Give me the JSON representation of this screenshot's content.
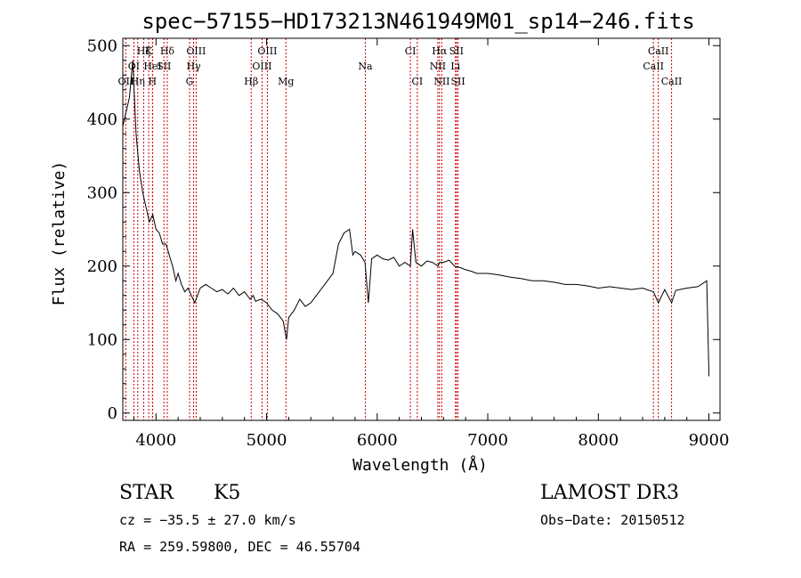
{
  "chart_data": {
    "type": "line",
    "title": "spec−57155−HD173213N461949M01_sp14−246.fits",
    "xlabel": "Wavelength (Å)",
    "ylabel": "Flux (relative)",
    "xlim": [
      3700,
      9100
    ],
    "ylim": [
      -10,
      510
    ],
    "x_ticks": [
      4000,
      5000,
      6000,
      7000,
      8000,
      9000
    ],
    "y_ticks": [
      0,
      100,
      200,
      300,
      400,
      500
    ],
    "grid": false,
    "line_color": "#000000",
    "marker_color": "#cc0000",
    "series": [
      {
        "x": [
          3700,
          3760,
          3790,
          3820,
          3850,
          3880,
          3910,
          3940,
          3970,
          4000,
          4030,
          4060,
          4090,
          4120,
          4150,
          4180,
          4200,
          4230,
          4260,
          4290,
          4320,
          4350,
          4400,
          4450,
          4500,
          4550,
          4600,
          4650,
          4700,
          4750,
          4800,
          4850,
          4880,
          4900,
          4950,
          5000,
          5050,
          5100,
          5150,
          5180,
          5200,
          5250,
          5300,
          5350,
          5400,
          5450,
          5500,
          5550,
          5600,
          5650,
          5700,
          5750,
          5780,
          5800,
          5850,
          5890,
          5920,
          5950,
          6000,
          6050,
          6100,
          6150,
          6200,
          6250,
          6300,
          6320,
          6350,
          6400,
          6450,
          6500,
          6550,
          6563,
          6600,
          6650,
          6700,
          6750,
          6800,
          6850,
          6900,
          7000,
          7100,
          7200,
          7300,
          7400,
          7500,
          7600,
          7700,
          7800,
          7900,
          8000,
          8100,
          8200,
          8300,
          8400,
          8498,
          8542,
          8600,
          8662,
          8700,
          8800,
          8900,
          8980,
          9000
        ],
        "y": [
          390,
          430,
          480,
          380,
          330,
          300,
          280,
          260,
          270,
          250,
          245,
          230,
          230,
          215,
          200,
          180,
          190,
          175,
          165,
          170,
          160,
          150,
          170,
          175,
          170,
          165,
          168,
          162,
          170,
          160,
          165,
          155,
          160,
          152,
          155,
          150,
          140,
          135,
          125,
          100,
          130,
          140,
          155,
          145,
          150,
          160,
          170,
          180,
          190,
          230,
          245,
          250,
          215,
          220,
          215,
          205,
          150,
          210,
          215,
          210,
          208,
          212,
          200,
          205,
          200,
          250,
          205,
          200,
          207,
          205,
          200,
          205,
          205,
          208,
          200,
          198,
          195,
          193,
          190,
          190,
          188,
          185,
          183,
          180,
          180,
          178,
          175,
          175,
          173,
          170,
          172,
          170,
          168,
          170,
          165,
          150,
          168,
          150,
          167,
          170,
          172,
          180,
          50
        ]
      }
    ],
    "line_markers": [
      {
        "label": "Hζ",
        "x": 3889,
        "row": 1
      },
      {
        "label": "K",
        "x": 3934,
        "row": 1
      },
      {
        "label": "Hδ",
        "x": 4102,
        "row": 1
      },
      {
        "label": "OIII",
        "x": 4363,
        "row": 1
      },
      {
        "label": "OIII",
        "x": 5007,
        "row": 1
      },
      {
        "label": "CI",
        "x": 6300,
        "row": 1
      },
      {
        "label": "Hα",
        "x": 6563,
        "row": 1
      },
      {
        "label": "SII",
        "x": 6717,
        "row": 1
      },
      {
        "label": "CaII",
        "x": 8542,
        "row": 1
      },
      {
        "label": "OI",
        "x": 3800,
        "row": 2
      },
      {
        "label": "HeI",
        "x": 3970,
        "row": 2
      },
      {
        "label": "SII",
        "x": 4072,
        "row": 2
      },
      {
        "label": "Hγ",
        "x": 4340,
        "row": 2
      },
      {
        "label": "OIII",
        "x": 4959,
        "row": 2
      },
      {
        "label": "Na",
        "x": 5893,
        "row": 2
      },
      {
        "label": "NII",
        "x": 6548,
        "row": 2
      },
      {
        "label": "Li",
        "x": 6708,
        "row": 2
      },
      {
        "label": "CaII",
        "x": 8498,
        "row": 2
      },
      {
        "label": "OII",
        "x": 3727,
        "row": 3
      },
      {
        "label": "Hη",
        "x": 3835,
        "row": 3
      },
      {
        "label": "H",
        "x": 3968,
        "row": 3
      },
      {
        "label": "G",
        "x": 4304,
        "row": 3
      },
      {
        "label": "Hβ",
        "x": 4861,
        "row": 3
      },
      {
        "label": "Mg",
        "x": 5175,
        "row": 3
      },
      {
        "label": "CI",
        "x": 6363,
        "row": 3
      },
      {
        "label": "NII",
        "x": 6584,
        "row": 3
      },
      {
        "label": "SII",
        "x": 6731,
        "row": 3
      },
      {
        "label": "CaII",
        "x": 8662,
        "row": 3
      }
    ]
  },
  "info": {
    "object_type": "STAR",
    "subclass": "K5",
    "survey": "LAMOST DR3",
    "redshift_line": "cz = −35.5 ± 27.0 km/s",
    "obs_date_line": "Obs−Date: 20150512",
    "coords_line": "RA = 259.59800, DEC =  46.55704"
  }
}
